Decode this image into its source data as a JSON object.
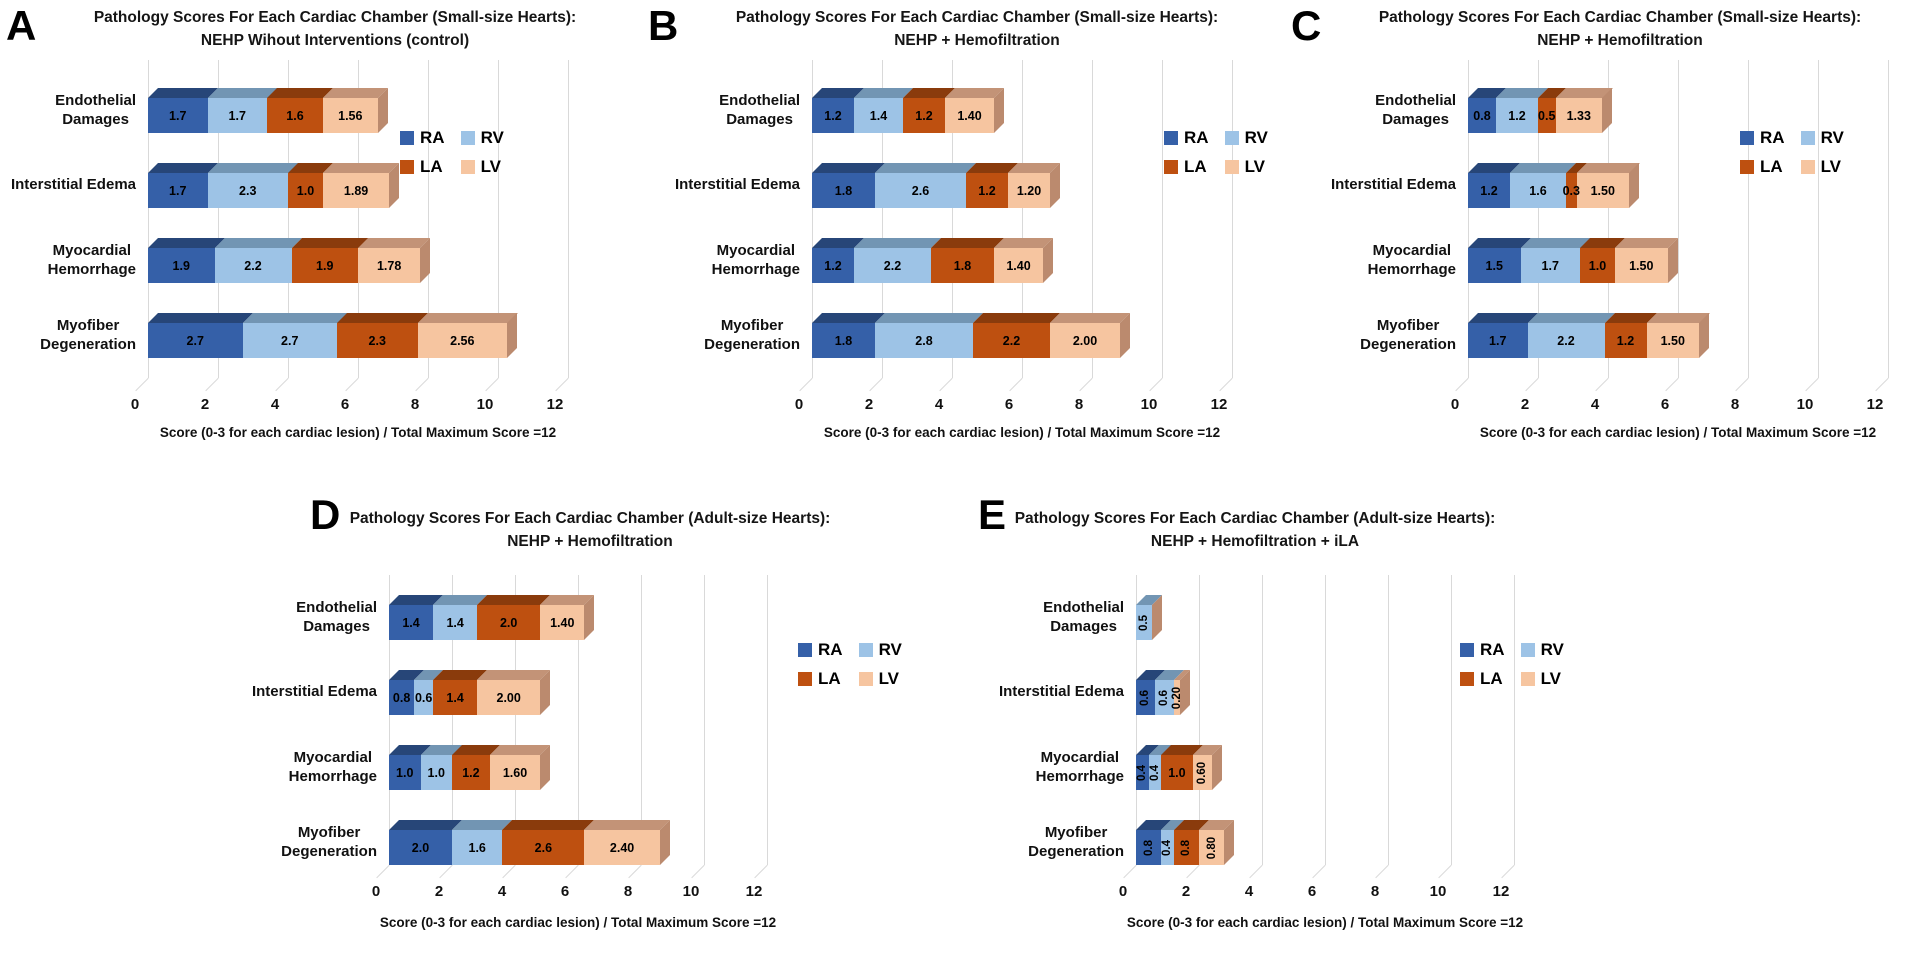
{
  "figure": {
    "x_axis_label": "Score (0-3 for each cardiac lesion) / Total Maximum Score =12",
    "x_ticks": [
      "0",
      "2",
      "4",
      "6",
      "8",
      "10",
      "12"
    ],
    "category_display": [
      "Endothelial\nDamages",
      "Interstitial Edema",
      "Myocardial\nHemorrhage",
      "Myofiber\nDegeneration"
    ],
    "legend_items": [
      "RA",
      "RV",
      "LA",
      "LV"
    ],
    "colors": {
      "RA": {
        "front": "#3560A8",
        "top": "#274678"
      },
      "RV": {
        "front": "#9DC3E6",
        "top": "#7295B3"
      },
      "LA": {
        "front": "#BE5010",
        "top": "#8A3B0C"
      },
      "LV": {
        "front": "#F6C5A0",
        "top": "#C39377"
      },
      "bar_end_cap": "#BB8A6E",
      "gridline": "#D9D9D9"
    }
  },
  "chart_data": [
    {
      "id": "A",
      "type": "bar",
      "stacked": true,
      "orientation": "horizontal",
      "title_line1": "Pathology Scores For Each Cardiac Chamber (Small-size Hearts):",
      "title_line2": "NEHP Wihout Interventions (control)",
      "categories": [
        "Endothelial Damages",
        "Interstitial Edema",
        "Myocardial Hemorrhage",
        "Myofiber Degeneration"
      ],
      "series": [
        {
          "name": "RA",
          "values": [
            1.7,
            1.7,
            1.9,
            2.7
          ],
          "labels": [
            "1.7",
            "1.7",
            "1.9",
            "2.7"
          ]
        },
        {
          "name": "RV",
          "values": [
            1.7,
            2.3,
            2.2,
            2.7
          ],
          "labels": [
            "1.7",
            "2.3",
            "2.2",
            "2.7"
          ]
        },
        {
          "name": "LA",
          "values": [
            1.6,
            1.0,
            1.9,
            2.3
          ],
          "labels": [
            "1.6",
            "1.0",
            "1.9",
            "2.3"
          ]
        },
        {
          "name": "LV",
          "values": [
            1.56,
            1.89,
            1.78,
            2.56
          ],
          "labels": [
            "1.56",
            "1.89",
            "1.78",
            "2.56"
          ]
        }
      ],
      "xlim": [
        0,
        12
      ],
      "xticks": [
        0,
        2,
        4,
        6,
        8,
        10,
        12
      ],
      "xlabel": "Score (0-3 for each cardiac lesion) / Total Maximum Score =12",
      "legend_position": "right-inside",
      "grid": true
    },
    {
      "id": "B",
      "type": "bar",
      "stacked": true,
      "orientation": "horizontal",
      "title_line1": "Pathology Scores For Each Cardiac Chamber (Small-size Hearts):",
      "title_line2": "NEHP + Hemofiltration",
      "categories": [
        "Endothelial Damages",
        "Interstitial Edema",
        "Myocardial Hemorrhage",
        "Myofiber Degeneration"
      ],
      "series": [
        {
          "name": "RA",
          "values": [
            1.2,
            1.8,
            1.2,
            1.8
          ],
          "labels": [
            "1.2",
            "1.8",
            "1.2",
            "1.8"
          ]
        },
        {
          "name": "RV",
          "values": [
            1.4,
            2.6,
            2.2,
            2.8
          ],
          "labels": [
            "1.4",
            "2.6",
            "2.2",
            "2.8"
          ]
        },
        {
          "name": "LA",
          "values": [
            1.2,
            1.2,
            1.8,
            2.2
          ],
          "labels": [
            "1.2",
            "1.2",
            "1.8",
            "2.2"
          ]
        },
        {
          "name": "LV",
          "values": [
            1.4,
            1.2,
            1.4,
            2.0
          ],
          "labels": [
            "1.40",
            "1.20",
            "1.40",
            "2.00"
          ]
        }
      ],
      "xlim": [
        0,
        12
      ],
      "xticks": [
        0,
        2,
        4,
        6,
        8,
        10,
        12
      ],
      "xlabel": "Score (0-3 for each cardiac lesion) / Total Maximum Score =12",
      "legend_position": "right-inside",
      "grid": true
    },
    {
      "id": "C",
      "type": "bar",
      "stacked": true,
      "orientation": "horizontal",
      "title_line1": "Pathology Scores For Each Cardiac Chamber (Small-size Hearts):",
      "title_line2": "NEHP + Hemofiltration",
      "categories": [
        "Endothelial Damages",
        "Interstitial Edema",
        "Myocardial Hemorrhage",
        "Myofiber Degeneration"
      ],
      "series": [
        {
          "name": "RA",
          "values": [
            0.8,
            1.2,
            1.5,
            1.7
          ],
          "labels": [
            "0.8",
            "1.2",
            "1.5",
            "1.7"
          ]
        },
        {
          "name": "RV",
          "values": [
            1.2,
            1.6,
            1.7,
            2.2
          ],
          "labels": [
            "1.2",
            "1.6",
            "1.7",
            "2.2"
          ]
        },
        {
          "name": "LA",
          "values": [
            0.5,
            0.3,
            1.0,
            1.2
          ],
          "labels": [
            "0.5",
            "0.3",
            "1.0",
            "1.2"
          ]
        },
        {
          "name": "LV",
          "values": [
            1.33,
            1.5,
            1.5,
            1.5
          ],
          "labels": [
            "1.33",
            "1.50",
            "1.50",
            "1.50"
          ]
        }
      ],
      "xlim": [
        0,
        12
      ],
      "xticks": [
        0,
        2,
        4,
        6,
        8,
        10,
        12
      ],
      "xlabel": "Score (0-3 for each cardiac lesion) / Total Maximum Score =12",
      "legend_position": "right-inside",
      "grid": true
    },
    {
      "id": "D",
      "type": "bar",
      "stacked": true,
      "orientation": "horizontal",
      "title_line1": "Pathology Scores For Each Cardiac Chamber (Adult-size Hearts):",
      "title_line2": "NEHP + Hemofiltration",
      "categories": [
        "Endothelial Damages",
        "Interstitial Edema",
        "Myocardial Hemorrhage",
        "Myofiber Degeneration"
      ],
      "series": [
        {
          "name": "RA",
          "values": [
            1.4,
            0.8,
            1.0,
            2.0
          ],
          "labels": [
            "1.4",
            "0.8",
            "1.0",
            "2.0"
          ]
        },
        {
          "name": "RV",
          "values": [
            1.4,
            0.6,
            1.0,
            1.6
          ],
          "labels": [
            "1.4",
            "0.6",
            "1.0",
            "1.6"
          ]
        },
        {
          "name": "LA",
          "values": [
            2.0,
            1.4,
            1.2,
            2.6
          ],
          "labels": [
            "2.0",
            "1.4",
            "1.2",
            "2.6"
          ]
        },
        {
          "name": "LV",
          "values": [
            1.4,
            2.0,
            1.6,
            2.4
          ],
          "labels": [
            "1.40",
            "2.00",
            "1.60",
            "2.40"
          ]
        }
      ],
      "xlim": [
        0,
        12
      ],
      "xticks": [
        0,
        2,
        4,
        6,
        8,
        10,
        12
      ],
      "xlabel": "Score (0-3 for each cardiac lesion) / Total Maximum Score =12",
      "legend_position": "right-inside",
      "grid": true
    },
    {
      "id": "E",
      "type": "bar",
      "stacked": true,
      "orientation": "horizontal",
      "title_line1": "Pathology Scores For Each Cardiac Chamber (Adult-size Hearts):",
      "title_line2": "NEHP + Hemofiltration + iLA",
      "categories": [
        "Endothelial Damages",
        "Interstitial Edema",
        "Myocardial Hemorrhage",
        "Myofiber Degeneration"
      ],
      "series": [
        {
          "name": "RA",
          "values": [
            0,
            0.6,
            0.4,
            0.8
          ],
          "labels": [
            "",
            "0.6",
            "0.4",
            "0.8"
          ]
        },
        {
          "name": "RV",
          "values": [
            0.5,
            0.6,
            0.4,
            0.4
          ],
          "labels": [
            "0.5",
            "0.6",
            "0.4",
            "0.4"
          ]
        },
        {
          "name": "LA",
          "values": [
            0,
            0,
            1.0,
            0.8
          ],
          "labels": [
            "",
            "",
            "1.0",
            "0.8"
          ]
        },
        {
          "name": "LV",
          "values": [
            0,
            0.2,
            0.6,
            0.8
          ],
          "labels": [
            "",
            "0.20",
            "0.60",
            "0.80"
          ]
        }
      ],
      "xlim": [
        0,
        12
      ],
      "xticks": [
        0,
        2,
        4,
        6,
        8,
        10,
        12
      ],
      "xlabel": "Score (0-3 for each cardiac lesion) / Total Maximum Score =12",
      "legend_position": "right-inside",
      "rotate_small_labels": true,
      "grid": true
    }
  ]
}
